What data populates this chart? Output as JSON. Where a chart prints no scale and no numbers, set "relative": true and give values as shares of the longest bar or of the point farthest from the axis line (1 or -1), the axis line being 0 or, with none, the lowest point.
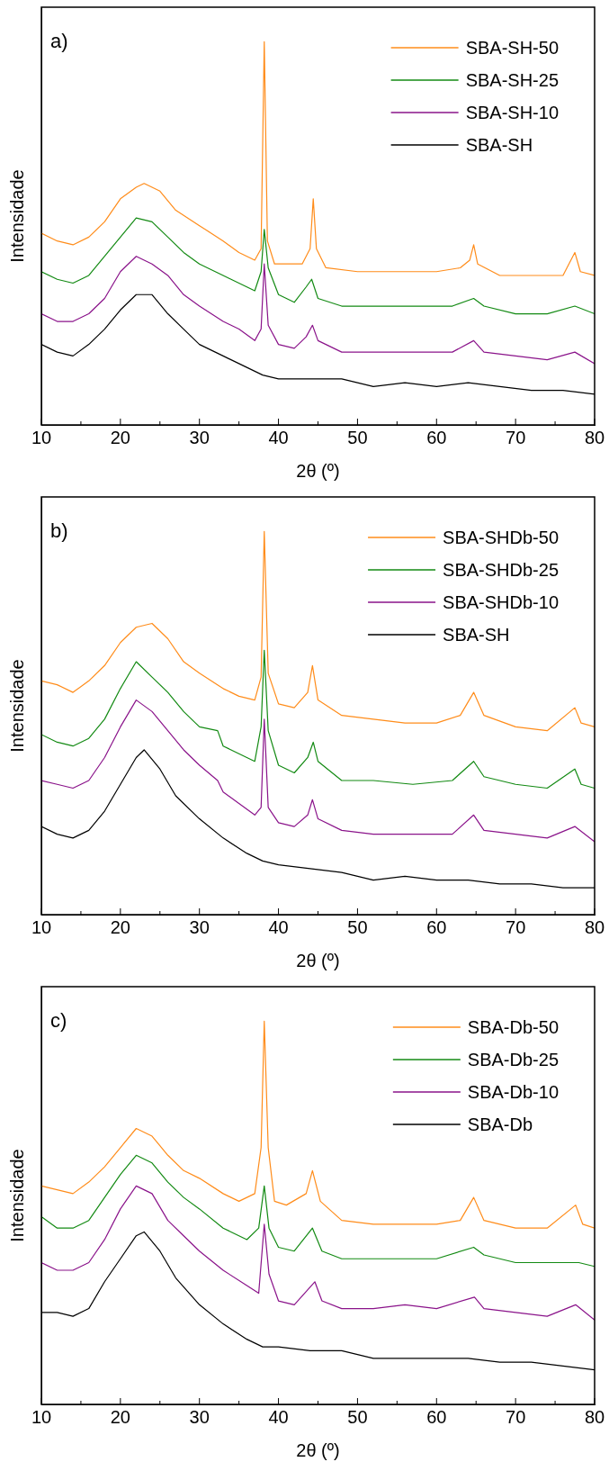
{
  "chart_data": [
    {
      "type": "line",
      "title": "a)",
      "xlabel": "2θ (º)",
      "ylabel": "Intensidade",
      "relative": true,
      "legend": "top right",
      "marker": "none",
      "line_style": "solid",
      "grid": false,
      "tick_labels": "x",
      "xlim": [
        10,
        80
      ],
      "xticks": [
        10,
        {
          "value": 15,
          "label": null
        },
        20,
        {
          "value": 25,
          "label": null
        },
        30,
        {
          "value": 35,
          "label": null
        },
        40,
        {
          "value": 45,
          "label": null
        },
        50,
        {
          "value": 55,
          "label": null
        },
        60,
        {
          "value": 65,
          "label": null
        },
        70,
        {
          "value": 75,
          "label": null
        },
        80
      ],
      "series": [
        {
          "name": "SBA-SH-50",
          "color": "#ff8c1a",
          "x": [
            10,
            12,
            14,
            16,
            18,
            20,
            22,
            23,
            25,
            27,
            30,
            33,
            35,
            37,
            37.8,
            38.2,
            38.6,
            39.5,
            41,
            43,
            44,
            44.4,
            44.8,
            46,
            50,
            55,
            60,
            63,
            64.2,
            64.7,
            65.2,
            68,
            72,
            76,
            77.5,
            78.2,
            80
          ],
          "values": [
            0.5,
            0.48,
            0.47,
            0.49,
            0.53,
            0.59,
            0.62,
            0.63,
            0.61,
            0.56,
            0.52,
            0.48,
            0.45,
            0.43,
            0.46,
            1,
            0.48,
            0.42,
            0.42,
            0.42,
            0.46,
            0.59,
            0.46,
            0.41,
            0.4,
            0.4,
            0.4,
            0.41,
            0.43,
            0.47,
            0.42,
            0.39,
            0.39,
            0.39,
            0.45,
            0.4,
            0.39
          ]
        },
        {
          "name": "SBA-SH-25",
          "color": "#138a13",
          "x": [
            10,
            12,
            14,
            16,
            18,
            20,
            22,
            24,
            26,
            28,
            30,
            33,
            35,
            37,
            37.8,
            38.2,
            38.7,
            40,
            42,
            43.5,
            44.2,
            45,
            48,
            52,
            57,
            62,
            64.7,
            66,
            70,
            74,
            77.5,
            80
          ],
          "values": [
            0.4,
            0.38,
            0.37,
            0.39,
            0.44,
            0.49,
            0.54,
            0.53,
            0.49,
            0.45,
            0.42,
            0.39,
            0.37,
            0.35,
            0.4,
            0.51,
            0.41,
            0.34,
            0.32,
            0.36,
            0.38,
            0.33,
            0.31,
            0.31,
            0.31,
            0.31,
            0.33,
            0.31,
            0.29,
            0.29,
            0.31,
            0.29
          ]
        },
        {
          "name": "SBA-SH-10",
          "color": "#8a138a",
          "x": [
            10,
            12,
            14,
            16,
            18,
            20,
            22,
            24,
            26,
            28,
            30,
            33,
            35,
            37,
            37.8,
            38.2,
            38.7,
            40,
            42,
            43.5,
            44.3,
            45,
            48,
            52,
            57,
            62,
            64.7,
            66,
            70,
            74,
            77.5,
            80
          ],
          "values": [
            0.29,
            0.27,
            0.27,
            0.29,
            0.33,
            0.4,
            0.44,
            0.42,
            0.39,
            0.34,
            0.31,
            0.27,
            0.25,
            0.22,
            0.25,
            0.42,
            0.26,
            0.21,
            0.2,
            0.23,
            0.26,
            0.22,
            0.19,
            0.19,
            0.19,
            0.19,
            0.22,
            0.19,
            0.18,
            0.17,
            0.19,
            0.16
          ]
        },
        {
          "name": "SBA-SH",
          "color": "#000000",
          "x": [
            10,
            12,
            14,
            16,
            18,
            20,
            22,
            24,
            26,
            28,
            30,
            33,
            36,
            38,
            40,
            44,
            48,
            52,
            56,
            60,
            64,
            68,
            72,
            76,
            80
          ],
          "values": [
            0.21,
            0.19,
            0.18,
            0.21,
            0.25,
            0.3,
            0.34,
            0.34,
            0.29,
            0.25,
            0.21,
            0.18,
            0.15,
            0.13,
            0.12,
            0.12,
            0.12,
            0.1,
            0.11,
            0.1,
            0.11,
            0.1,
            0.09,
            0.09,
            0.08
          ]
        }
      ]
    },
    {
      "type": "line",
      "title": "b)",
      "xlabel": "2θ (º)",
      "ylabel": "Intensidade",
      "relative": true,
      "legend": "top right",
      "marker": "none",
      "line_style": "solid",
      "grid": false,
      "tick_labels": "x",
      "xlim": [
        10,
        80
      ],
      "xticks": [
        10,
        {
          "value": 15,
          "label": null
        },
        20,
        {
          "value": 25,
          "label": null
        },
        30,
        {
          "value": 35,
          "label": null
        },
        40,
        {
          "value": 45,
          "label": null
        },
        50,
        {
          "value": 55,
          "label": null
        },
        60,
        {
          "value": 65,
          "label": null
        },
        70,
        {
          "value": 75,
          "label": null
        },
        80
      ],
      "series": [
        {
          "name": "SBA-SHDb-50",
          "color": "#ff8c1a",
          "x": [
            10,
            12,
            14,
            16,
            18,
            20,
            22,
            24,
            26,
            28,
            30,
            33,
            35,
            37,
            37.8,
            38.2,
            38.7,
            40,
            42,
            43.7,
            44.3,
            45,
            48,
            52,
            56,
            60,
            63,
            64.7,
            66,
            70,
            74,
            77.5,
            78.3,
            80
          ],
          "values": [
            0.61,
            0.6,
            0.58,
            0.61,
            0.65,
            0.71,
            0.75,
            0.76,
            0.72,
            0.66,
            0.63,
            0.59,
            0.57,
            0.56,
            0.62,
            1,
            0.63,
            0.55,
            0.54,
            0.58,
            0.65,
            0.56,
            0.52,
            0.51,
            0.5,
            0.5,
            0.52,
            0.58,
            0.52,
            0.49,
            0.48,
            0.54,
            0.5,
            0.49
          ]
        },
        {
          "name": "SBA-SHDb-25",
          "color": "#138a13",
          "x": [
            10,
            12,
            14,
            16,
            18,
            20,
            22,
            24,
            26,
            28,
            30,
            32.3,
            33,
            35,
            37,
            37.8,
            38.2,
            38.7,
            40,
            42,
            43.7,
            44.4,
            45,
            48,
            52,
            57,
            62,
            64.7,
            66,
            70,
            74,
            77.5,
            78.3,
            80
          ],
          "values": [
            0.47,
            0.45,
            0.44,
            0.46,
            0.51,
            0.59,
            0.66,
            0.62,
            0.58,
            0.53,
            0.49,
            0.48,
            0.44,
            0.42,
            0.4,
            0.49,
            0.69,
            0.48,
            0.39,
            0.37,
            0.41,
            0.45,
            0.4,
            0.35,
            0.35,
            0.34,
            0.35,
            0.4,
            0.36,
            0.34,
            0.33,
            0.38,
            0.34,
            0.33
          ]
        },
        {
          "name": "SBA-SHDb-10",
          "color": "#8a138a",
          "x": [
            10,
            12,
            14,
            16,
            18,
            20,
            22,
            24,
            26,
            28,
            30,
            32.3,
            33,
            35,
            37,
            37.8,
            38.2,
            38.7,
            40,
            42,
            43.7,
            44.3,
            45,
            48,
            52,
            57,
            62,
            64.7,
            66,
            70,
            74,
            77.5,
            80
          ],
          "values": [
            0.35,
            0.34,
            0.33,
            0.35,
            0.41,
            0.49,
            0.56,
            0.53,
            0.48,
            0.43,
            0.39,
            0.35,
            0.32,
            0.29,
            0.26,
            0.28,
            0.51,
            0.28,
            0.24,
            0.23,
            0.26,
            0.3,
            0.25,
            0.22,
            0.21,
            0.21,
            0.21,
            0.26,
            0.22,
            0.21,
            0.2,
            0.23,
            0.19
          ]
        },
        {
          "name": "SBA-SH",
          "color": "#000000",
          "x": [
            10,
            12,
            14,
            16,
            18,
            20,
            22,
            23,
            25,
            27,
            30,
            33,
            36,
            38,
            40,
            44,
            48,
            52,
            56,
            60,
            64,
            68,
            72,
            76,
            80
          ],
          "values": [
            0.23,
            0.21,
            0.2,
            0.22,
            0.27,
            0.34,
            0.41,
            0.43,
            0.38,
            0.31,
            0.25,
            0.2,
            0.16,
            0.14,
            0.13,
            0.12,
            0.11,
            0.09,
            0.1,
            0.09,
            0.09,
            0.08,
            0.08,
            0.07,
            0.07
          ]
        }
      ]
    },
    {
      "type": "line",
      "title": "c)",
      "xlabel": "2θ (º)",
      "ylabel": "Intensidade",
      "relative": true,
      "legend": "top right",
      "marker": "none",
      "line_style": "solid",
      "grid": false,
      "tick_labels": "x",
      "xlim": [
        10,
        80
      ],
      "xticks": [
        10,
        {
          "value": 15,
          "label": null
        },
        20,
        {
          "value": 25,
          "label": null
        },
        30,
        {
          "value": 35,
          "label": null
        },
        40,
        {
          "value": 45,
          "label": null
        },
        50,
        {
          "value": 55,
          "label": null
        },
        60,
        {
          "value": 65,
          "label": null
        },
        70,
        {
          "value": 75,
          "label": null
        },
        80
      ],
      "series": [
        {
          "name": "SBA-Db-50",
          "color": "#ff8c1a",
          "x": [
            10,
            12,
            14,
            16,
            18,
            20,
            22,
            24,
            26,
            28,
            30,
            33,
            35,
            37,
            37.8,
            38.2,
            38.7,
            39.5,
            41,
            43.5,
            44.3,
            45.3,
            48,
            52,
            56,
            60,
            63,
            64.7,
            66,
            70,
            74,
            77.6,
            78.5,
            80
          ],
          "values": [
            0.57,
            0.56,
            0.55,
            0.58,
            0.62,
            0.67,
            0.72,
            0.7,
            0.65,
            0.61,
            0.59,
            0.55,
            0.53,
            0.55,
            0.67,
            1,
            0.67,
            0.53,
            0.52,
            0.55,
            0.61,
            0.53,
            0.48,
            0.47,
            0.47,
            0.47,
            0.48,
            0.54,
            0.48,
            0.46,
            0.46,
            0.52,
            0.47,
            0.46
          ]
        },
        {
          "name": "SBA-Db-25",
          "color": "#138a13",
          "x": [
            10,
            12,
            14,
            16,
            18,
            20,
            22,
            24,
            26,
            28,
            30,
            33,
            36,
            37.5,
            38.2,
            38.8,
            40,
            42,
            44.3,
            45.5,
            48,
            52,
            56,
            60,
            64.7,
            66,
            70,
            74,
            78,
            80
          ],
          "values": [
            0.49,
            0.46,
            0.46,
            0.48,
            0.54,
            0.6,
            0.65,
            0.63,
            0.58,
            0.54,
            0.51,
            0.46,
            0.43,
            0.46,
            0.57,
            0.46,
            0.41,
            0.4,
            0.46,
            0.4,
            0.38,
            0.38,
            0.38,
            0.38,
            0.41,
            0.39,
            0.37,
            0.37,
            0.37,
            0.36
          ]
        },
        {
          "name": "SBA-Db-10",
          "color": "#8a138a",
          "x": [
            10,
            12,
            14,
            16,
            18,
            20,
            22,
            24,
            26,
            28,
            30,
            33,
            36,
            37.5,
            38.2,
            38.8,
            40,
            42,
            44.6,
            45.5,
            48,
            52,
            56,
            60,
            64.8,
            66,
            70,
            74,
            77.6,
            80
          ],
          "values": [
            0.37,
            0.35,
            0.35,
            0.37,
            0.43,
            0.51,
            0.57,
            0.55,
            0.48,
            0.44,
            0.4,
            0.35,
            0.31,
            0.29,
            0.47,
            0.34,
            0.27,
            0.26,
            0.32,
            0.27,
            0.25,
            0.25,
            0.26,
            0.25,
            0.28,
            0.25,
            0.24,
            0.23,
            0.26,
            0.22
          ]
        },
        {
          "name": "SBA-Db",
          "color": "#000000",
          "x": [
            10,
            12,
            14,
            16,
            18,
            20,
            22,
            23,
            25,
            27,
            30,
            33,
            36,
            38,
            40,
            44,
            48,
            52,
            56,
            60,
            64,
            68,
            72,
            76,
            80
          ],
          "values": [
            0.24,
            0.24,
            0.23,
            0.25,
            0.32,
            0.38,
            0.44,
            0.45,
            0.4,
            0.33,
            0.26,
            0.21,
            0.17,
            0.15,
            0.15,
            0.14,
            0.14,
            0.12,
            0.12,
            0.12,
            0.12,
            0.11,
            0.11,
            0.1,
            0.09
          ]
        }
      ]
    }
  ]
}
